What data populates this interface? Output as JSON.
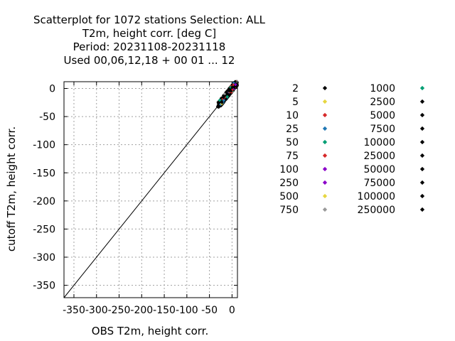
{
  "chart_data": {
    "type": "scatter",
    "title_lines": [
      "Scatterplot for 1072 stations Selection: ALL",
      "T2m, height corr. [deg C]",
      "Period: 20231108-20231118",
      "Used  00,06,12,18  + 00 01 ... 12"
    ],
    "xlabel": "OBS T2m, height corr.",
    "ylabel": "cutoff T2m, height corr.",
    "xlim": [
      -372,
      12
    ],
    "ylim": [
      -372,
      12
    ],
    "xticks": [
      -350,
      -300,
      -250,
      -200,
      -150,
      -100,
      -50,
      0
    ],
    "xtick_labels": [
      "-350",
      "-300",
      "-250",
      "-200",
      "-150",
      "-100",
      "-50",
      "0"
    ],
    "yticks": [
      0,
      -50,
      -100,
      -150,
      -200,
      -250,
      -300,
      -350
    ],
    "ytick_labels": [
      "0",
      "-50",
      "-100",
      "-150",
      "-200",
      "-250",
      "-300",
      "-350"
    ],
    "grid": true,
    "reference_line": {
      "from": [
        -372,
        -372
      ],
      "to": [
        12,
        12
      ]
    },
    "cluster": {
      "x_range": [
        -32,
        12
      ],
      "y_range": [
        -33,
        12
      ]
    },
    "legend_position": "right",
    "legend": [
      {
        "label": "2",
        "color": "#000000"
      },
      {
        "label": "5",
        "color": "#e6d640"
      },
      {
        "label": "10",
        "color": "#d62728"
      },
      {
        "label": "25",
        "color": "#1f77b4"
      },
      {
        "label": "50",
        "color": "#009e73"
      },
      {
        "label": "75",
        "color": "#d62728"
      },
      {
        "label": "100",
        "color": "#8b00c9"
      },
      {
        "label": "250",
        "color": "#8b00c9"
      },
      {
        "label": "500",
        "color": "#e6d640"
      },
      {
        "label": "750",
        "color": "#999999"
      },
      {
        "label": "1000",
        "color": "#009e73"
      },
      {
        "label": "2500",
        "color": "#000000"
      },
      {
        "label": "5000",
        "color": "#000000"
      },
      {
        "label": "7500",
        "color": "#000000"
      },
      {
        "label": "10000",
        "color": "#000000"
      },
      {
        "label": "25000",
        "color": "#000000"
      },
      {
        "label": "50000",
        "color": "#000000"
      },
      {
        "label": "75000",
        "color": "#000000"
      },
      {
        "label": "100000",
        "color": "#000000"
      },
      {
        "label": "250000",
        "color": "#000000"
      }
    ]
  }
}
